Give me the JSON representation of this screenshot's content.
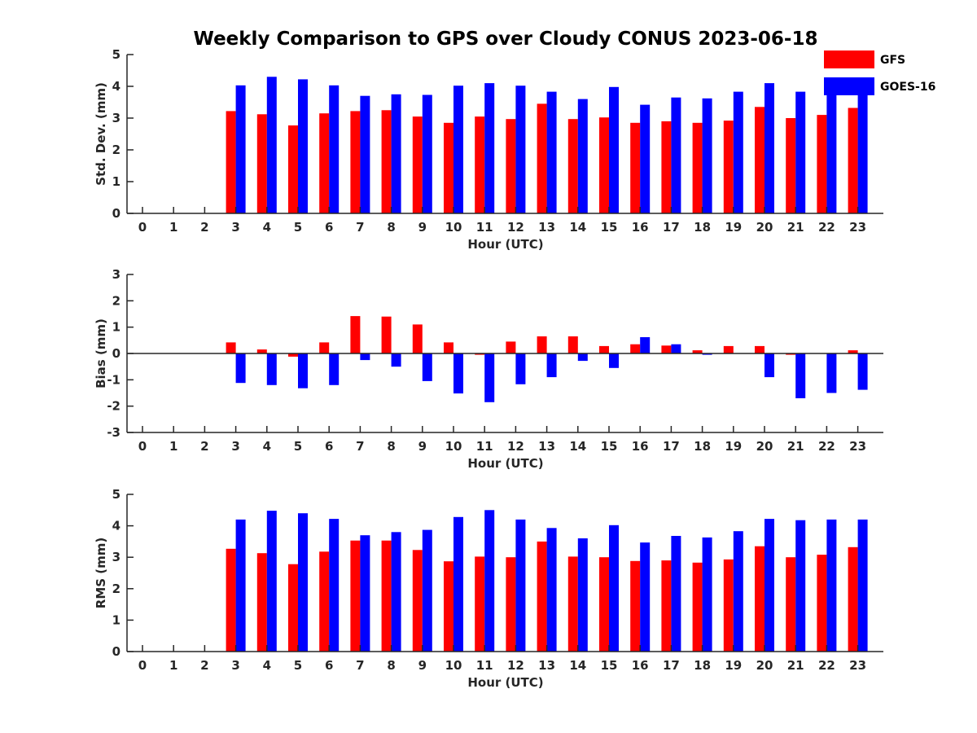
{
  "title": "Weekly Comparison to GPS over Cloudy CONUS 2023-06-18",
  "colors": {
    "GFS": "#ff0000",
    "GOES-16": "#0000ff",
    "axis": "#262626"
  },
  "chart_data": [
    {
      "type": "bar",
      "title": "Weekly Comparison to GPS over Cloudy CONUS 2023-06-18",
      "xlabel": "Hour (UTC)",
      "ylabel": "Std. Dev. (mm)",
      "ylim": [
        0,
        5
      ],
      "yticks": [
        0,
        1,
        2,
        3,
        4,
        5
      ],
      "categories": [
        "0",
        "1",
        "2",
        "3",
        "4",
        "5",
        "6",
        "7",
        "8",
        "9",
        "10",
        "11",
        "12",
        "13",
        "14",
        "15",
        "16",
        "17",
        "18",
        "19",
        "20",
        "21",
        "22",
        "23"
      ],
      "grid": false,
      "legend": "top-right",
      "series": [
        {
          "name": "GFS",
          "color": "#ff0000",
          "values": [
            null,
            null,
            null,
            3.22,
            3.12,
            2.77,
            3.15,
            3.22,
            3.25,
            3.05,
            2.85,
            3.05,
            2.97,
            3.45,
            2.97,
            3.02,
            2.85,
            2.9,
            2.85,
            2.92,
            3.35,
            3.0,
            3.1,
            3.32
          ]
        },
        {
          "name": "GOES-16",
          "color": "#0000ff",
          "values": [
            null,
            null,
            null,
            4.03,
            4.3,
            4.22,
            4.03,
            3.7,
            3.75,
            3.73,
            4.02,
            4.1,
            4.02,
            3.83,
            3.6,
            3.98,
            3.42,
            3.65,
            3.62,
            3.83,
            4.1,
            3.83,
            3.92,
            3.85
          ]
        }
      ]
    },
    {
      "type": "bar",
      "xlabel": "Hour (UTC)",
      "ylabel": "Bias (mm)",
      "ylim": [
        -3,
        3
      ],
      "yticks": [
        -3,
        -2,
        -1,
        0,
        1,
        2,
        3
      ],
      "categories": [
        "0",
        "1",
        "2",
        "3",
        "4",
        "5",
        "6",
        "7",
        "8",
        "9",
        "10",
        "11",
        "12",
        "13",
        "14",
        "15",
        "16",
        "17",
        "18",
        "19",
        "20",
        "21",
        "22",
        "23"
      ],
      "grid": false,
      "series": [
        {
          "name": "GFS",
          "color": "#ff0000",
          "values": [
            null,
            null,
            null,
            0.42,
            0.15,
            -0.12,
            0.42,
            1.42,
            1.4,
            1.1,
            0.42,
            -0.05,
            0.45,
            0.65,
            0.65,
            0.28,
            0.35,
            0.3,
            0.12,
            0.28,
            0.28,
            -0.05,
            0.0,
            0.12
          ]
        },
        {
          "name": "GOES-16",
          "color": "#0000ff",
          "values": [
            null,
            null,
            null,
            -1.12,
            -1.2,
            -1.32,
            -1.2,
            -0.25,
            -0.5,
            -1.05,
            -1.52,
            -1.85,
            -1.17,
            -0.9,
            -0.28,
            -0.55,
            0.62,
            0.35,
            -0.05,
            0.0,
            -0.9,
            -1.7,
            -1.5,
            -1.38
          ]
        }
      ]
    },
    {
      "type": "bar",
      "xlabel": "Hour (UTC)",
      "ylabel": "RMS (mm)",
      "ylim": [
        0,
        5
      ],
      "yticks": [
        0,
        1,
        2,
        3,
        4,
        5
      ],
      "categories": [
        "0",
        "1",
        "2",
        "3",
        "4",
        "5",
        "6",
        "7",
        "8",
        "9",
        "10",
        "11",
        "12",
        "13",
        "14",
        "15",
        "16",
        "17",
        "18",
        "19",
        "20",
        "21",
        "22",
        "23"
      ],
      "grid": false,
      "series": [
        {
          "name": "GFS",
          "color": "#ff0000",
          "values": [
            null,
            null,
            null,
            3.27,
            3.13,
            2.78,
            3.18,
            3.53,
            3.53,
            3.23,
            2.87,
            3.02,
            3.0,
            3.5,
            3.02,
            3.0,
            2.88,
            2.9,
            2.83,
            2.93,
            3.35,
            3.0,
            3.08,
            3.32
          ]
        },
        {
          "name": "GOES-16",
          "color": "#0000ff",
          "values": [
            null,
            null,
            null,
            4.2,
            4.48,
            4.4,
            4.22,
            3.7,
            3.8,
            3.87,
            4.28,
            4.5,
            4.2,
            3.93,
            3.6,
            4.02,
            3.47,
            3.68,
            3.63,
            3.83,
            4.22,
            4.18,
            4.2,
            4.2
          ]
        }
      ]
    }
  ]
}
